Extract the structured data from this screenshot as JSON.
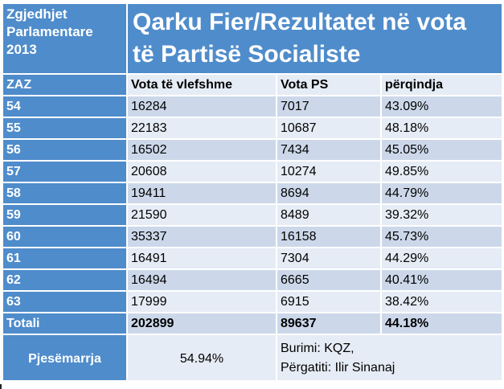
{
  "header": {
    "left_lines": [
      "Zgjedhjet",
      "Parlamentare",
      "2013"
    ],
    "title_lines": [
      "Qarku Fier/Rezultatet në vota",
      "të Partisë Socialiste"
    ]
  },
  "columns": {
    "zaz": "ZAZ",
    "valid": "Vota të vlefshme",
    "ps": "Vota PS",
    "pct": "përqindja"
  },
  "rows": [
    {
      "zaz": "54",
      "valid": "16284",
      "ps": "7017",
      "pct": "43.09%"
    },
    {
      "zaz": "55",
      "valid": "22183",
      "ps": "10687",
      "pct": "48.18%"
    },
    {
      "zaz": "56",
      "valid": "16502",
      "ps": "7434",
      "pct": "45.05%"
    },
    {
      "zaz": "57",
      "valid": "20608",
      "ps": "10274",
      "pct": "49.85%"
    },
    {
      "zaz": "58",
      "valid": "19411",
      "ps": "8694",
      "pct": "44.79%"
    },
    {
      "zaz": "59",
      "valid": "21590",
      "ps": "8489",
      "pct": "39.32%"
    },
    {
      "zaz": "60",
      "valid": "35337",
      "ps": "16158",
      "pct": "45.73%"
    },
    {
      "zaz": "61",
      "valid": "16491",
      "ps": "7304",
      "pct": "44.29%"
    },
    {
      "zaz": "62",
      "valid": "16494",
      "ps": "6665",
      "pct": "40.41%"
    },
    {
      "zaz": "63",
      "valid": "17999",
      "ps": "6915",
      "pct": "38.42%"
    }
  ],
  "total": {
    "label": "Totali",
    "valid": "202899",
    "ps": "89637",
    "pct": "44.18%"
  },
  "footer": {
    "label": "Pjesëmarrja",
    "value": "54.94%",
    "source": "Burimi: KQZ,",
    "author": "Përgatiti: Ilir Sinanaj"
  },
  "colors": {
    "header_blue": "#4f8ccb",
    "row_dark": "#ccd8ea",
    "row_light": "#e6ecf5"
  }
}
